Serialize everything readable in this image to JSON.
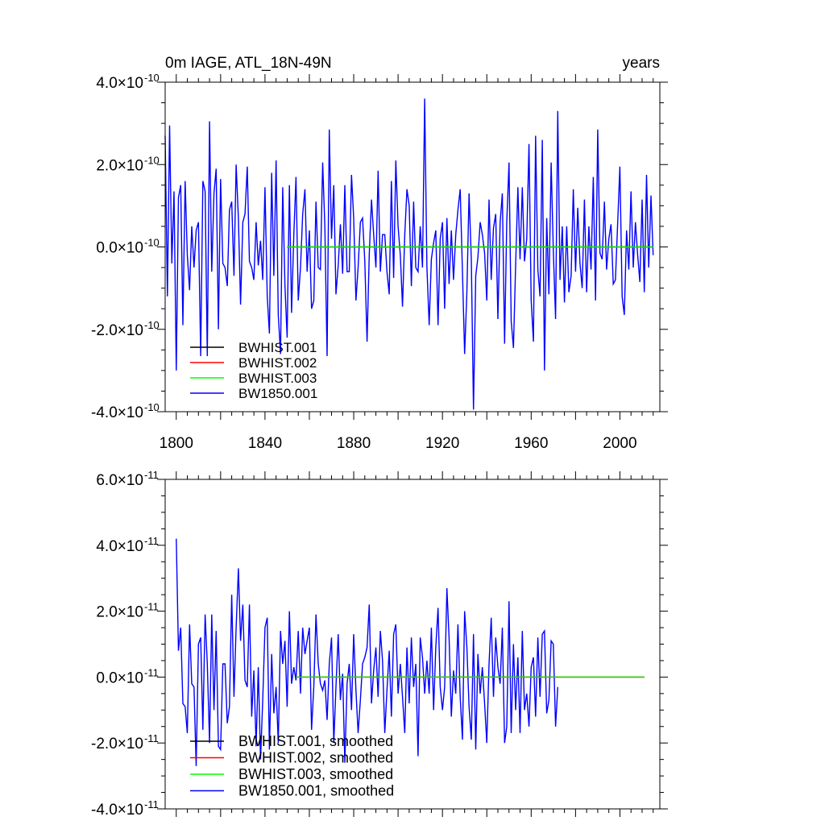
{
  "chart_data": [
    {
      "type": "line",
      "title_left": "0m IAGE, ATL_18N-49N",
      "title_right": "years",
      "xlim": [
        1795,
        2018
      ],
      "ylim": [
        -4e-10,
        4e-10
      ],
      "x_ticks": [
        1800,
        1840,
        1880,
        1920,
        1960,
        2000
      ],
      "x_tick_labels": [
        "1800",
        "1840",
        "1880",
        "1920",
        "1960",
        "2000"
      ],
      "y_ticks": [
        {
          "value": 4e-10,
          "mantissa": "4.0",
          "exp": "-10"
        },
        {
          "value": 2e-10,
          "mantissa": "2.0",
          "exp": "-10"
        },
        {
          "value": 0.0,
          "mantissa": "0.0",
          "exp": "-10"
        },
        {
          "value": -2e-10,
          "mantissa": "-2.0",
          "exp": "-10"
        },
        {
          "value": -4e-10,
          "mantissa": "-4.0",
          "exp": "-10"
        }
      ],
      "times_sign": "×10",
      "legend": [
        {
          "name": "BWHIST.001",
          "color": "#000000"
        },
        {
          "name": "BWHIST.002",
          "color": "#ff0000"
        },
        {
          "name": "BWHIST.003",
          "color": "#00ff00"
        },
        {
          "name": "BW1850.001",
          "color": "#0000ff"
        }
      ],
      "series": [
        {
          "name": "BWHIST.001",
          "color": "#000000",
          "x": [
            1850,
            2015
          ],
          "values": [
            0,
            0
          ]
        },
        {
          "name": "BWHIST.002",
          "color": "#ff0000",
          "x": [
            1850,
            2015
          ],
          "values": [
            0,
            0
          ]
        },
        {
          "name": "BWHIST.003",
          "color": "#00ff00",
          "x": [
            1850,
            2015
          ],
          "values": [
            0,
            0
          ]
        },
        {
          "name": "BW1850.001",
          "color": "#0000ff",
          "x_start": 1795,
          "x_step": 1,
          "values": [
            2.7e-10,
            -1.2e-10,
            2.95e-10,
            -4e-11,
            1.35e-10,
            -3e-10,
            1.2e-10,
            1.5e-10,
            -1.9e-10,
            1.6e-10,
            -2e-11,
            -1.05e-10,
            5e-11,
            -5e-11,
            4e-11,
            6e-11,
            -2.65e-10,
            1.6e-10,
            1.35e-10,
            -2.65e-10,
            3.05e-10,
            -6e-11,
            1.3e-10,
            1.9e-10,
            -2e-10,
            1.65e-10,
            -4e-11,
            -5e-11,
            -9.5e-11,
            9e-11,
            1.1e-10,
            -7e-11,
            2e-10,
            7e-11,
            -1.4e-10,
            6e-11,
            8e-11,
            1.95e-10,
            -3.5e-11,
            -5e-11,
            -8e-11,
            6e-11,
            -4.5e-11,
            1.5e-11,
            -8e-11,
            1.45e-10,
            -1.2e-10,
            -2.1e-10,
            1.8e-10,
            -7e-11,
            2.1e-10,
            -1.65e-10,
            -2.6e-10,
            1.45e-10,
            -9.5e-11,
            -2.2e-10,
            1.5e-10,
            -1.6e-10,
            3e-11,
            1.7e-10,
            -1.3e-10,
            -5e-11,
            8e-11,
            1.4e-10,
            -6e-11,
            4e-11,
            -1.5e-10,
            -1.3e-10,
            1.1e-10,
            -5e-11,
            -5.5e-11,
            2.05e-10,
            5e-11,
            -2.65e-10,
            2.85e-10,
            2e-11,
            1.5e-10,
            -1.15e-10,
            -4.5e-11,
            5.5e-11,
            -6.5e-11,
            1.5e-10,
            -6e-11,
            -6e-11,
            1.75e-10,
            7e-11,
            -1.3e-10,
            -5e-11,
            6e-11,
            7e-11,
            -3.5e-11,
            -2.3e-10,
            -2e-11,
            1.15e-10,
            3e-11,
            -5e-11,
            1.85e-10,
            -6e-11,
            3e-11,
            3e-11,
            -6e-11,
            -1.15e-10,
            1.6e-10,
            -7.5e-11,
            2.1e-10,
            5e-11,
            -2e-11,
            -1.45e-10,
            3e-11,
            1.4e-10,
            1e-10,
            -9.5e-11,
            1.1e-10,
            -5e-11,
            -6e-11,
            5e-11,
            -5e-11,
            3.6e-10,
            -5e-11,
            -1.9e-10,
            -3e-11,
            1e-11,
            4e-11,
            -1.9e-10,
            2e-11,
            6e-11,
            -1.5e-10,
            7e-11,
            -9e-11,
            4e-11,
            -8e-11,
            3e-11,
            9e-11,
            1.4e-10,
            -6e-11,
            -2.6e-10,
            -1.1e-10,
            1.3e-10,
            -3e-11,
            -3.95e-10,
            -7e-11,
            -2.5e-11,
            6e-11,
            3e-11,
            -1.5e-11,
            -1.3e-10,
            1.15e-10,
            -8e-11,
            4.5e-11,
            8e-11,
            -1.75e-10,
            6e-11,
            1.3e-10,
            -2.35e-10,
            6e-11,
            2.05e-10,
            -1.8e-10,
            -2.45e-10,
            -4.5e-11,
            1.45e-10,
            -3e-11,
            1.45e-10,
            -3.5e-11,
            2e-11,
            2.5e-10,
            -1.3e-10,
            -2.3e-10,
            2.7e-10,
            -5.5e-11,
            -1.2e-10,
            2.6e-10,
            -3e-10,
            7e-11,
            -1.15e-10,
            2.05e-10,
            -1e-11,
            -1.75e-10,
            3.3e-10,
            -8e-11,
            5e-11,
            -1.35e-10,
            5e-11,
            -1.1e-10,
            -7e-11,
            1.4e-10,
            -6e-11,
            9.5e-11,
            -4e-11,
            -1e-10,
            1.15e-10,
            -1.1e-10,
            5e-11,
            -5.5e-11,
            1.7e-10,
            -1.3e-10,
            2.85e-10,
            -1.5e-11,
            -3e-11,
            1.1e-10,
            -5.5e-11,
            2e-11,
            5.5e-11,
            -9e-11,
            -8e-11,
            6e-11,
            1.95e-10,
            -1.2e-10,
            -1.65e-10,
            4e-11,
            -5.5e-11,
            1.35e-10,
            -5e-11,
            6e-11,
            -2e-11,
            -8.5e-11,
            1.15e-10,
            -1.1e-10,
            1.75e-10,
            -5e-11,
            1.25e-10,
            -2e-11
          ]
        }
      ]
    },
    {
      "type": "line",
      "xlim": [
        1795,
        2018
      ],
      "ylim": [
        -4e-11,
        6e-11
      ],
      "y_ticks": [
        {
          "value": 6e-11,
          "mantissa": "6.0",
          "exp": "-11"
        },
        {
          "value": 4e-11,
          "mantissa": "4.0",
          "exp": "-11"
        },
        {
          "value": 2e-11,
          "mantissa": "2.0",
          "exp": "-11"
        },
        {
          "value": 0.0,
          "mantissa": "0.0",
          "exp": "-11"
        },
        {
          "value": -2e-11,
          "mantissa": "-2.0",
          "exp": "-11"
        },
        {
          "value": -4e-11,
          "mantissa": "-4.0",
          "exp": "-11"
        }
      ],
      "times_sign": "×10",
      "legend": [
        {
          "name": "BWHIST.001, smoothed",
          "color": "#000000"
        },
        {
          "name": "BWHIST.002, smoothed",
          "color": "#ff0000"
        },
        {
          "name": "BWHIST.003, smoothed",
          "color": "#00ff00"
        },
        {
          "name": "BW1850.001, smoothed",
          "color": "#0000ff"
        }
      ],
      "series": [
        {
          "name": "BWHIST.001, smoothed",
          "color": "#000000",
          "x": [
            1854,
            2011
          ],
          "values": [
            0,
            0
          ]
        },
        {
          "name": "BWHIST.002, smoothed",
          "color": "#ff0000",
          "x": [
            1854,
            2011
          ],
          "values": [
            0,
            0
          ]
        },
        {
          "name": "BWHIST.003, smoothed",
          "color": "#00ff00",
          "x": [
            1854,
            2011
          ],
          "values": [
            0,
            0
          ]
        },
        {
          "name": "BW1850.001, smoothed",
          "color": "#0000ff",
          "x_start": 1800,
          "x_step": 1,
          "values": [
            4.2e-11,
            8e-12,
            1.5e-11,
            -8e-12,
            -9e-12,
            -1.7e-11,
            1.6e-11,
            -2e-12,
            -3e-12,
            -2.7e-11,
            1e-11,
            1.2e-11,
            -1.6e-11,
            1.9e-11,
            4e-12,
            -2e-11,
            1.9e-11,
            -1e-11,
            1.4e-11,
            -2.1e-11,
            -2.2e-11,
            4e-12,
            4e-12,
            -1.4e-11,
            -9e-12,
            2.5e-11,
            -6e-12,
            1.5e-11,
            3.3e-11,
            1.1e-11,
            2.2e-11,
            -1e-12,
            -3e-12,
            2.2e-11,
            -1.2e-11,
            2e-12,
            -2.1e-11,
            3e-12,
            -2.5e-11,
            -7e-12,
            1.5e-11,
            1.8e-11,
            -2.2e-11,
            7e-12,
            -1.1e-11,
            -3e-12,
            -2e-11,
            1.4e-11,
            4e-12,
            1.1e-11,
            -9e-12,
            2e-11,
            -2e-12,
            3e-12,
            -1e-12,
            1.4e-11,
            -5e-12,
            1.5e-11,
            7e-12,
            1.1e-11,
            1.5e-11,
            -1.6e-11,
            -3e-12,
            1.9e-11,
            4e-12,
            -2e-12,
            -4e-12,
            -1e-12,
            -1.3e-11,
            4e-12,
            1.2e-11,
            -2e-11,
            -3e-12,
            1.3e-11,
            -7e-12,
            1e-12,
            -2.6e-11,
            -2e-12,
            4e-12,
            -1e-11,
            1.3e-11,
            -4e-12,
            -1.7e-11,
            -7e-12,
            4e-12,
            6e-12,
            9e-12,
            2.2e-11,
            -8e-12,
            2e-12,
            9e-12,
            -6e-12,
            1.4e-11,
            5e-12,
            -1.7e-11,
            -4e-12,
            8e-12,
            -1.2e-11,
            1.3e-11,
            1.6e-11,
            -5e-12,
            4e-12,
            -6e-12,
            -1.7e-11,
            9e-12,
            -8e-12,
            1.2e-11,
            -3e-12,
            4e-12,
            -2.4e-11,
            1.2e-11,
            6e-12,
            -5e-12,
            5e-12,
            -5e-12,
            1.5e-11,
            -1e-11,
            9e-12,
            2.1e-11,
            -3e-12,
            -1e-11,
            -3e-12,
            2.7e-11,
            1.2e-11,
            -1.2e-11,
            2e-12,
            -5e-12,
            1.6e-11,
            -6e-12,
            -1.9e-11,
            2e-11,
            9e-12,
            -9e-12,
            -1.9e-11,
            1.3e-11,
            -2.2e-11,
            7e-12,
            -5e-12,
            3e-12,
            -8e-12,
            -2e-11,
            4e-12,
            1.8e-11,
            -6e-12,
            1.2e-11,
            3e-12,
            -2e-12,
            1.5e-11,
            -2e-11,
            -1.5e-11,
            2.3e-11,
            -1.7e-11,
            1e-11,
            -1e-11,
            6e-12,
            -1.7e-11,
            1.4e-11,
            -1e-11,
            -5e-12,
            -1.5e-11,
            3e-12,
            6e-12,
            -1.2e-11,
            1.2e-11,
            -6e-12,
            1.3e-11,
            1.4e-11,
            -1.1e-11,
            -7e-12,
            1.1e-11,
            1e-11,
            -1.5e-11,
            -3e-12
          ]
        }
      ]
    }
  ]
}
